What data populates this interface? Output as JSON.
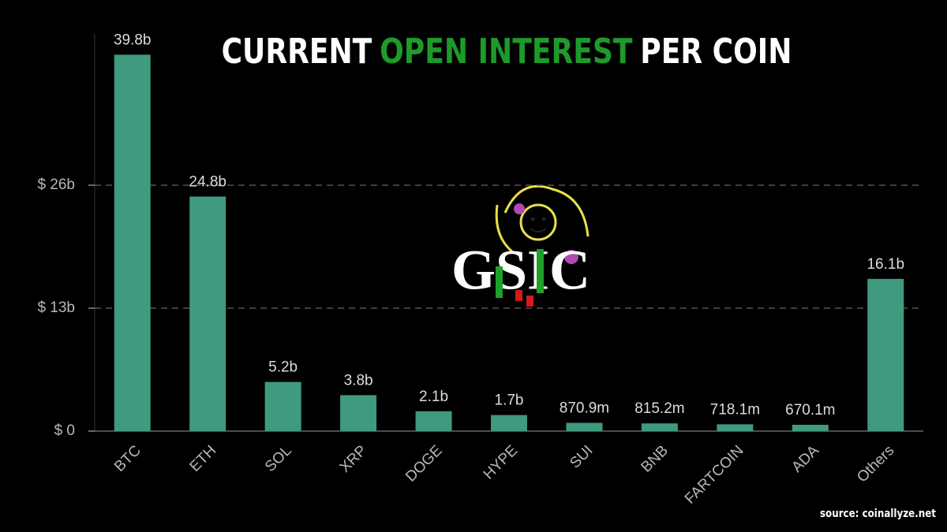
{
  "chart_data": {
    "type": "bar",
    "title": [
      {
        "text": "CURRENT",
        "color": "#ffffff"
      },
      {
        "text": "OPEN INTEREST",
        "color": "#1e9a2a"
      },
      {
        "text": "PER COIN",
        "color": "#ffffff"
      }
    ],
    "logo_text": "GSIC",
    "source": "source: coinallyze.net",
    "categories": [
      "BTC",
      "ETH",
      "SOL",
      "XRP",
      "DOGE",
      "HYPE",
      "SUI",
      "BNB",
      "FARTCOIN",
      "ADA",
      "Others"
    ],
    "values": [
      39.8,
      24.8,
      5.2,
      3.8,
      2.1,
      1.7,
      0.8709,
      0.8152,
      0.7181,
      0.6701,
      16.1
    ],
    "value_labels": [
      "39.8b",
      "24.8b",
      "5.2b",
      "3.8b",
      "2.1b",
      "1.7b",
      "870.9m",
      "815.2m",
      "718.1m",
      "670.1m",
      "16.1b"
    ],
    "color": "#3f9a80",
    "ylim": [
      0,
      42
    ],
    "yticks": [
      {
        "value": 0,
        "label": "$ 0"
      },
      {
        "value": 13,
        "label": "$ 13b"
      },
      {
        "value": 26,
        "label": "$ 26b"
      }
    ],
    "grid": true
  }
}
